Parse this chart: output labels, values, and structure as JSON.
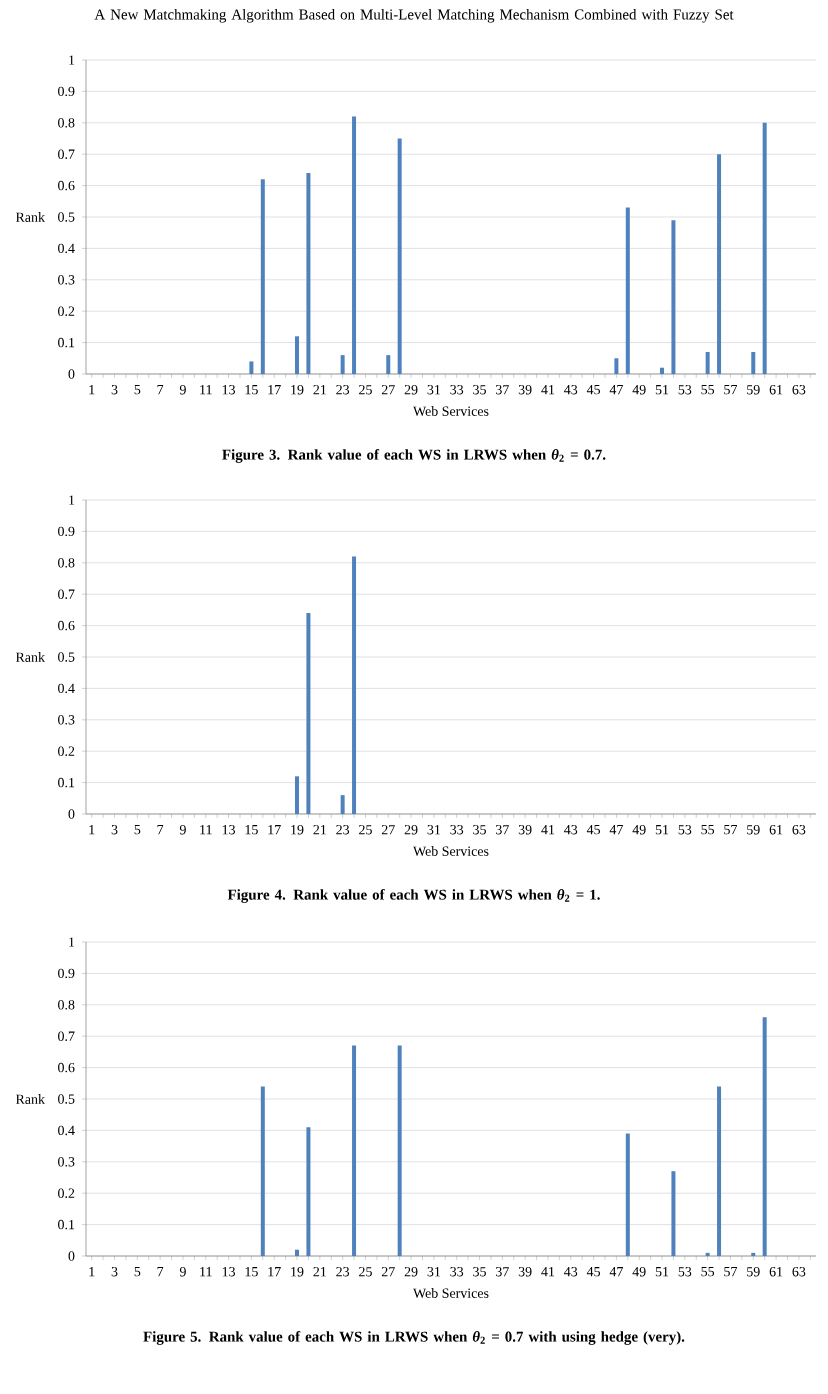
{
  "chart_data": [
    {
      "type": "bar",
      "xlabel": "Web Services",
      "ylabel": "Rank",
      "color": "#4f81bd",
      "grid": "y",
      "ylim": [
        0,
        1
      ],
      "yticks": [
        0,
        0.1,
        0.2,
        0.3,
        0.4,
        0.5,
        0.6,
        0.7,
        0.8,
        0.9,
        1
      ],
      "categories": [
        "1",
        null,
        "3",
        null,
        "5",
        null,
        "7",
        null,
        "9",
        null,
        "11",
        null,
        "13",
        null,
        "15",
        null,
        "17",
        null,
        "19",
        null,
        "21",
        null,
        "23",
        null,
        "25",
        null,
        "27",
        null,
        "29",
        null,
        "31",
        null,
        "33",
        null,
        "35",
        null,
        "37",
        null,
        "39",
        null,
        "41",
        null,
        "43",
        null,
        "45",
        null,
        "47",
        null,
        "49",
        null,
        "51",
        null,
        "53",
        null,
        "55",
        null,
        "57",
        null,
        "59",
        null,
        "61",
        null,
        "63",
        null
      ],
      "values": [
        0,
        0,
        0,
        0,
        0,
        0,
        0,
        0,
        0,
        0,
        0,
        0,
        0,
        0,
        0.04,
        0.62,
        0,
        0,
        0.12,
        0.64,
        0,
        0,
        0.06,
        0.82,
        0,
        0,
        0.06,
        0.75,
        0,
        0,
        0,
        0,
        0,
        0,
        0,
        0,
        0,
        0,
        0,
        0,
        0,
        0,
        0,
        0,
        0,
        0,
        0.05,
        0.53,
        0,
        0,
        0.02,
        0.49,
        0,
        0,
        0.07,
        0.7,
        0,
        0,
        0.07,
        0.8,
        0,
        0,
        0,
        0
      ],
      "annotations": [
        "A New Matchmaking Algorithm Based on Multi-Level Matching Mechanism Combined with Fuzzy Set",
        "Figure 3. Rank value of each WS in LRWS when *θ*$_{2}$ = 0.7."
      ]
    },
    {
      "type": "bar",
      "xlabel": "Web Services",
      "ylabel": "Rank",
      "color": "#4f81bd",
      "grid": "y",
      "ylim": [
        0,
        1
      ],
      "yticks": [
        0,
        0.1,
        0.2,
        0.3,
        0.4,
        0.5,
        0.6,
        0.7,
        0.8,
        0.9,
        1
      ],
      "categories": [
        "1",
        null,
        "3",
        null,
        "5",
        null,
        "7",
        null,
        "9",
        null,
        "11",
        null,
        "13",
        null,
        "15",
        null,
        "17",
        null,
        "19",
        null,
        "21",
        null,
        "23",
        null,
        "25",
        null,
        "27",
        null,
        "29",
        null,
        "31",
        null,
        "33",
        null,
        "35",
        null,
        "37",
        null,
        "39",
        null,
        "41",
        null,
        "43",
        null,
        "45",
        null,
        "47",
        null,
        "49",
        null,
        "51",
        null,
        "53",
        null,
        "55",
        null,
        "57",
        null,
        "59",
        null,
        "61",
        null,
        "63",
        null
      ],
      "values": [
        0,
        0,
        0,
        0,
        0,
        0,
        0,
        0,
        0,
        0,
        0,
        0,
        0,
        0,
        0,
        0,
        0,
        0,
        0.12,
        0.64,
        0,
        0,
        0.06,
        0.82,
        0,
        0,
        0,
        0,
        0,
        0,
        0,
        0,
        0,
        0,
        0,
        0,
        0,
        0,
        0,
        0,
        0,
        0,
        0,
        0,
        0,
        0,
        0,
        0,
        0,
        0,
        0,
        0,
        0,
        0,
        0,
        0,
        0,
        0,
        0,
        0,
        0,
        0,
        0,
        0
      ],
      "annotations": [
        "Figure 4. Rank value of each WS in LRWS when *θ*$_{2}$ = 1."
      ]
    },
    {
      "type": "bar",
      "xlabel": "Web Services",
      "ylabel": "Rank",
      "color": "#4f81bd",
      "grid": "y",
      "ylim": [
        0,
        1
      ],
      "yticks": [
        0,
        0.1,
        0.2,
        0.3,
        0.4,
        0.5,
        0.6,
        0.7,
        0.8,
        0.9,
        1
      ],
      "categories": [
        "1",
        null,
        "3",
        null,
        "5",
        null,
        "7",
        null,
        "9",
        null,
        "11",
        null,
        "13",
        null,
        "15",
        null,
        "17",
        null,
        "19",
        null,
        "21",
        null,
        "23",
        null,
        "25",
        null,
        "27",
        null,
        "29",
        null,
        "31",
        null,
        "33",
        null,
        "35",
        null,
        "37",
        null,
        "39",
        null,
        "41",
        null,
        "43",
        null,
        "45",
        null,
        "47",
        null,
        "49",
        null,
        "51",
        null,
        "53",
        null,
        "55",
        null,
        "57",
        null,
        "59",
        null,
        "61",
        null,
        "63",
        null
      ],
      "values": [
        0,
        0,
        0,
        0,
        0,
        0,
        0,
        0,
        0,
        0,
        0,
        0,
        0,
        0,
        0,
        0.54,
        0,
        0,
        0.02,
        0.41,
        0,
        0,
        0,
        0.67,
        0,
        0,
        0,
        0.67,
        0,
        0,
        0,
        0,
        0,
        0,
        0,
        0,
        0,
        0,
        0,
        0,
        0,
        0,
        0,
        0,
        0,
        0,
        0,
        0.39,
        0,
        0,
        0,
        0.27,
        0,
        0,
        0.01,
        0.54,
        0,
        0,
        0.01,
        0.76,
        0,
        0,
        0,
        0
      ],
      "annotations": [
        "Figure 5. Rank value of each WS in LRWS when *θ*$_{2}$ = 0.7 with using hedge (very)."
      ]
    }
  ]
}
